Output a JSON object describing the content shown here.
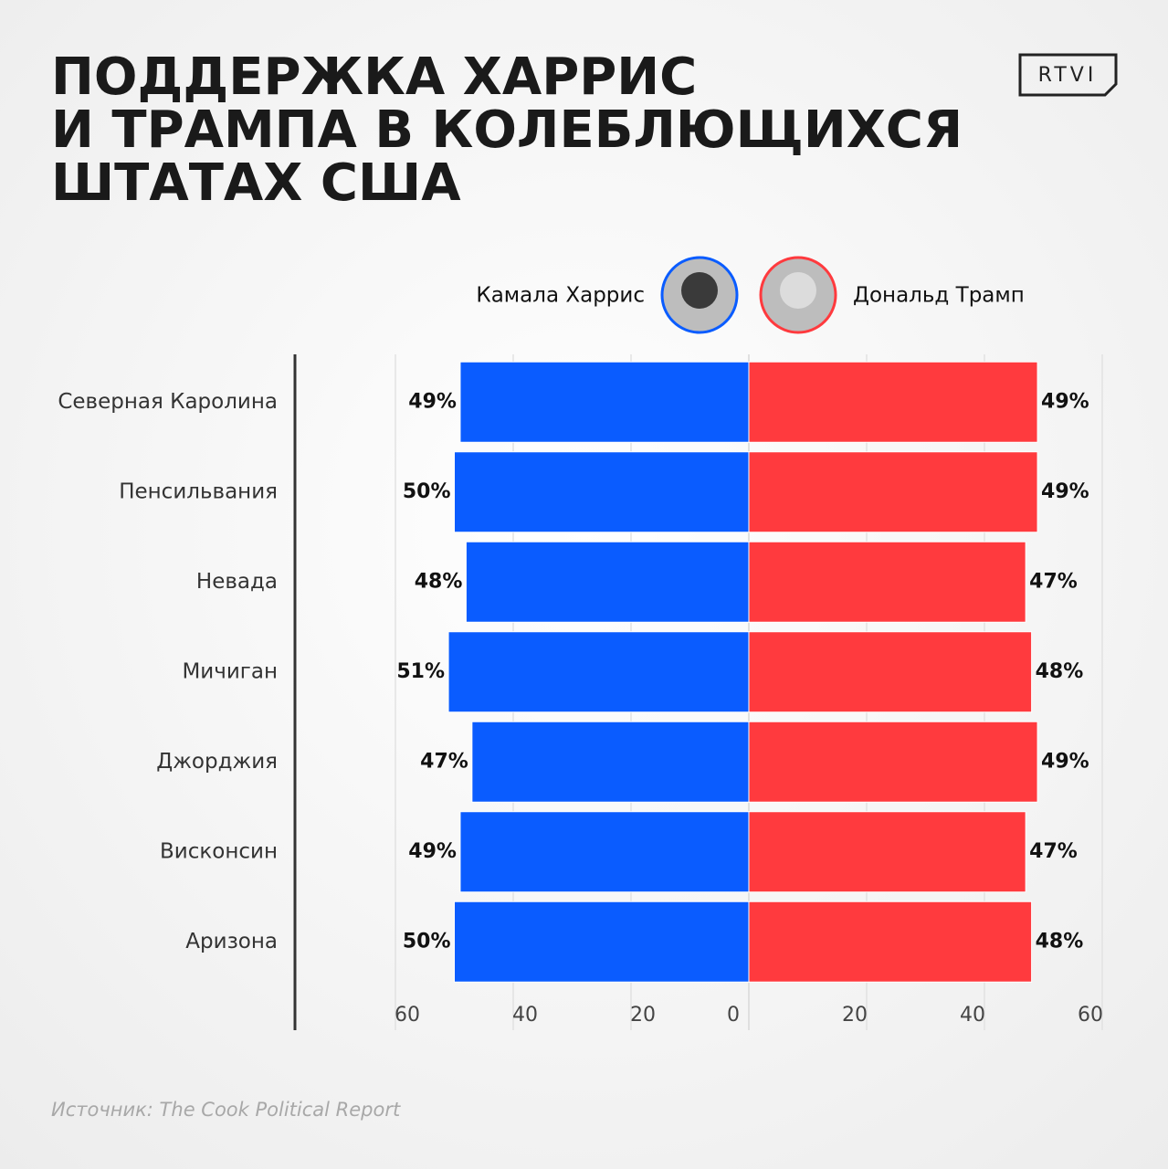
{
  "chart_data": {
    "type": "butterfly-bar",
    "title": [
      "ПОДДЕРЖКА ХАРРИС",
      "И ТРАМПА В КОЛЕБЛЮЩИХСЯ",
      "ШТАТАХ США"
    ],
    "logo": "RTVI",
    "source": "Источник: The Cook Political Report",
    "categories": [
      "Северная Каролина",
      "Пенсильвания",
      "Невада",
      "Мичиган",
      "Джорджия",
      "Висконсин",
      "Аризона"
    ],
    "series": [
      {
        "name": "Камала Харрис",
        "color": "#0a5cff",
        "side": "left",
        "values": [
          49,
          50,
          48,
          51,
          47,
          49,
          50
        ],
        "value_labels": [
          "49%",
          "50%",
          "48%",
          "51%",
          "47%",
          "49%",
          "50%"
        ]
      },
      {
        "name": "Дональд Трамп",
        "color": "#ff3a3e",
        "side": "right",
        "values": [
          49,
          49,
          47,
          48,
          49,
          47,
          48
        ],
        "value_labels": [
          "49%",
          "49%",
          "47%",
          "48%",
          "49%",
          "47%",
          "48%"
        ]
      }
    ],
    "xlim": [
      0,
      60
    ],
    "xticks": [
      0,
      20,
      40,
      60
    ],
    "grid": true
  }
}
